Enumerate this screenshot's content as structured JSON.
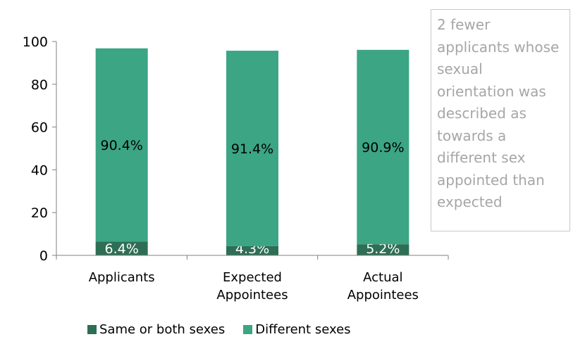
{
  "chart_data": {
    "type": "bar",
    "stacked": true,
    "categories": [
      [
        "Applicants"
      ],
      [
        "Expected",
        "Appointees"
      ],
      [
        "Actual",
        "Appointees"
      ]
    ],
    "series": [
      {
        "name": "Same or both sexes",
        "color": "#2e6e55",
        "values": [
          6.4,
          4.3,
          5.2
        ],
        "labels": [
          "6.4%",
          "4.3%",
          "5.2%"
        ]
      },
      {
        "name": "Different sexes",
        "color": "#3ba584",
        "values": [
          90.4,
          91.4,
          90.9
        ],
        "labels": [
          "90.4%",
          "91.4%",
          "90.9%"
        ]
      }
    ],
    "ylim": [
      0,
      100
    ],
    "yticks": [
      0,
      20,
      40,
      60,
      80,
      100
    ],
    "legend_position": "bottom",
    "grid": false
  },
  "annotation": {
    "lines": [
      "2 fewer",
      "applicants whose",
      "sexual",
      "orientation was",
      "described as",
      "towards a",
      "different sex",
      "appointed than",
      "expected"
    ]
  }
}
